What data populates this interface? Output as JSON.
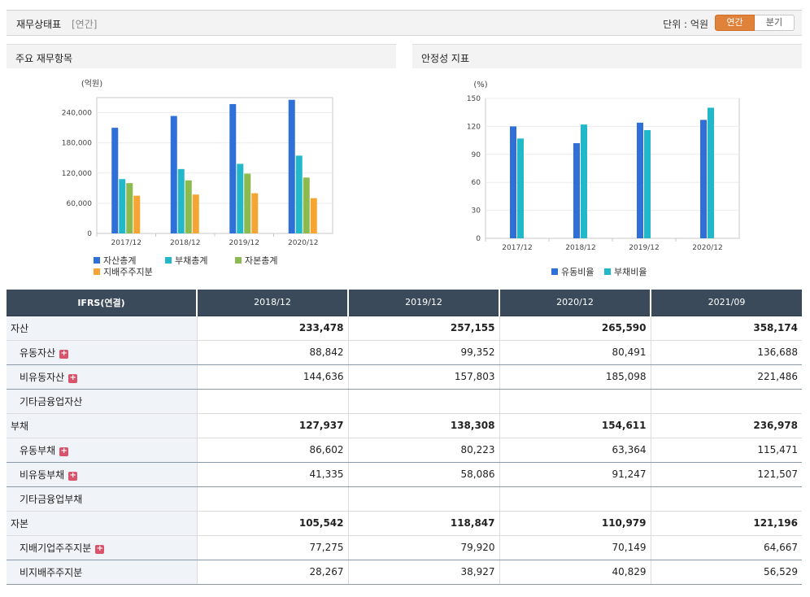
{
  "header": {
    "title": "재무상태표",
    "subtitle": "[연간]",
    "unit": "단위 : 억원",
    "toggle": {
      "annual": "연간",
      "quarterly": "분기"
    }
  },
  "colors": {
    "blue": "#2e6fd8",
    "teal": "#22b8c9",
    "green": "#8dba4f",
    "orange": "#f5a533",
    "table_header": "#3b4a5a",
    "accent": "#e0823a"
  },
  "chart_data": [
    {
      "type": "bar",
      "title": "주요 재무항목",
      "ylabel": "(억원)",
      "categories": [
        "2017/12",
        "2018/12",
        "2019/12",
        "2020/12"
      ],
      "ylim": [
        0,
        270000
      ],
      "yticks": [
        "0",
        "60,000",
        "120,000",
        "180,000",
        "240,000"
      ],
      "ytick_values": [
        0,
        60000,
        120000,
        180000,
        240000
      ],
      "series": [
        {
          "name": "자산총계",
          "color": "#2e6fd8",
          "values": [
            210000,
            233478,
            257155,
            265590
          ]
        },
        {
          "name": "부채총계",
          "color": "#22b8c9",
          "values": [
            108000,
            127937,
            138308,
            154611
          ]
        },
        {
          "name": "자본총계",
          "color": "#8dba4f",
          "values": [
            100000,
            105542,
            118847,
            110979
          ]
        },
        {
          "name": "지배주주지분",
          "color": "#f5a533",
          "values": [
            75000,
            77275,
            79920,
            70149
          ]
        }
      ],
      "legend": "bottom"
    },
    {
      "type": "bar",
      "title": "안정성 지표",
      "ylabel": "(%)",
      "categories": [
        "2017/12",
        "2018/12",
        "2019/12",
        "2020/12"
      ],
      "ylim": [
        0,
        150
      ],
      "yticks": [
        "0",
        "30",
        "60",
        "90",
        "120",
        "150"
      ],
      "ytick_values": [
        0,
        30,
        60,
        90,
        120,
        150
      ],
      "series": [
        {
          "name": "유동비율",
          "color": "#2e6fd8",
          "values": [
            120,
            102,
            124,
            127
          ]
        },
        {
          "name": "부채비율",
          "color": "#22b8c9",
          "values": [
            107,
            122,
            116,
            140
          ]
        }
      ],
      "legend": "bottom"
    }
  ],
  "table": {
    "header_label": "IFRS(연결)",
    "columns": [
      "2018/12",
      "2019/12",
      "2020/12",
      "2021/09"
    ],
    "rows": [
      {
        "label": "자산",
        "level": 0,
        "plus": false,
        "values": [
          "233,478",
          "257,155",
          "265,590",
          "358,174"
        ]
      },
      {
        "label": "유동자산",
        "level": 1,
        "plus": true,
        "values": [
          "88,842",
          "99,352",
          "80,491",
          "136,688"
        ]
      },
      {
        "label": "비유동자산",
        "level": 1,
        "plus": true,
        "values": [
          "144,636",
          "157,803",
          "185,098",
          "221,486"
        ]
      },
      {
        "label": "기타금융업자산",
        "level": 1,
        "plus": false,
        "values": [
          "",
          "",
          "",
          ""
        ]
      },
      {
        "label": "부채",
        "level": 0,
        "plus": false,
        "values": [
          "127,937",
          "138,308",
          "154,611",
          "236,978"
        ]
      },
      {
        "label": "유동부채",
        "level": 1,
        "plus": true,
        "values": [
          "86,602",
          "80,223",
          "63,364",
          "115,471"
        ]
      },
      {
        "label": "비유동부채",
        "level": 1,
        "plus": true,
        "values": [
          "41,335",
          "58,086",
          "91,247",
          "121,507"
        ]
      },
      {
        "label": "기타금융업부채",
        "level": 1,
        "plus": false,
        "values": [
          "",
          "",
          "",
          ""
        ]
      },
      {
        "label": "자본",
        "level": 0,
        "plus": false,
        "values": [
          "105,542",
          "118,847",
          "110,979",
          "121,196"
        ]
      },
      {
        "label": "지배기업주주지분",
        "level": 1,
        "plus": true,
        "values": [
          "77,275",
          "79,920",
          "70,149",
          "64,667"
        ]
      },
      {
        "label": "비지배주주지분",
        "level": 1,
        "plus": false,
        "values": [
          "28,267",
          "38,927",
          "40,829",
          "56,529"
        ]
      }
    ]
  }
}
